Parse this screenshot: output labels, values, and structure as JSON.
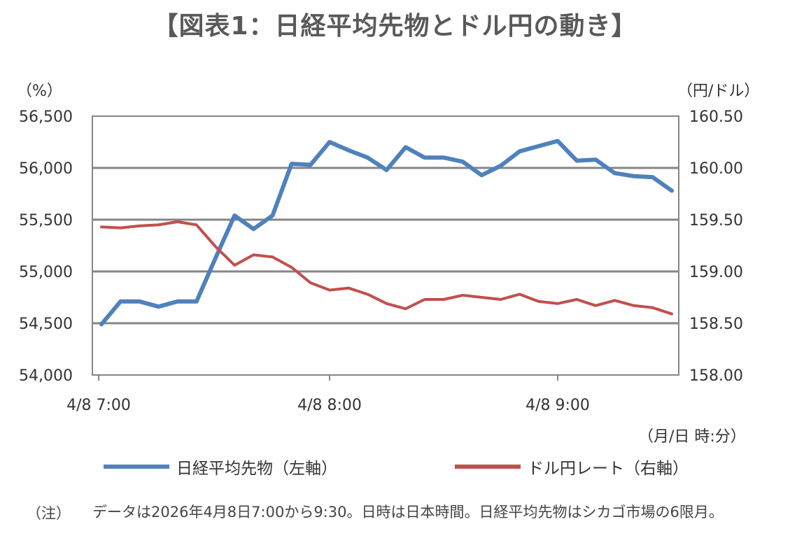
{
  "title": "【図表1：日経平均先物とドル円の動き】",
  "units": {
    "left": "（%）",
    "right": "（円/ドル）",
    "x": "（月/日 時:分）"
  },
  "legend": [
    {
      "label": "日経平均先物（左軸）",
      "color": "#4F81BD"
    },
    {
      "label": "ドル円レート（右軸）",
      "color": "#C0504D"
    }
  ],
  "note": {
    "label": "（注）",
    "text": "データは2026年4月8日7:00から9:30。日時は日本時間。日経平均先物はシカゴ市場の6限月。"
  },
  "chart_data": {
    "type": "line",
    "x": [
      "7:00",
      "7:05",
      "7:10",
      "7:15",
      "7:20",
      "7:25",
      "7:30",
      "7:35",
      "7:40",
      "7:45",
      "7:50",
      "7:55",
      "8:00",
      "8:05",
      "8:10",
      "8:15",
      "8:20",
      "8:25",
      "8:30",
      "8:35",
      "8:40",
      "8:45",
      "8:50",
      "8:55",
      "9:00",
      "9:05",
      "9:10",
      "9:15",
      "9:20",
      "9:25",
      "9:30"
    ],
    "x_ticks": [
      "4/8 7:00",
      "4/8 8:00",
      "4/8 9:00"
    ],
    "x_tick_positions": [
      0,
      12,
      24
    ],
    "y_left": {
      "ticks": [
        "54,000",
        "54,500",
        "55,000",
        "55,500",
        "56,000",
        "56,500"
      ],
      "ylim": [
        54000,
        56500
      ]
    },
    "y_right": {
      "ticks": [
        "158.00",
        "158.50",
        "159.00",
        "159.50",
        "160.00",
        "160.50"
      ],
      "ylim": [
        158.0,
        160.5
      ]
    },
    "grid": true,
    "legend_position": "bottom",
    "series": [
      {
        "name": "日経平均先物（左軸）",
        "axis": "left",
        "color": "#4F81BD",
        "values": [
          54490,
          54710,
          54710,
          54660,
          54710,
          54710,
          55130,
          55540,
          55410,
          55540,
          56040,
          56030,
          56250,
          56170,
          56100,
          55980,
          56200,
          56100,
          56100,
          56060,
          55930,
          56020,
          56160,
          56210,
          56260,
          56070,
          56080,
          55950,
          55920,
          55910,
          55780
        ]
      },
      {
        "name": "ドル円レート（右軸）",
        "axis": "right",
        "color": "#C0504D",
        "values": [
          159.43,
          159.42,
          159.44,
          159.45,
          159.48,
          159.45,
          159.24,
          159.06,
          159.16,
          159.14,
          159.04,
          158.89,
          158.82,
          158.84,
          158.78,
          158.69,
          158.64,
          158.73,
          158.73,
          158.77,
          158.75,
          158.73,
          158.78,
          158.71,
          158.69,
          158.73,
          158.67,
          158.72,
          158.67,
          158.65,
          158.59
        ]
      }
    ]
  }
}
